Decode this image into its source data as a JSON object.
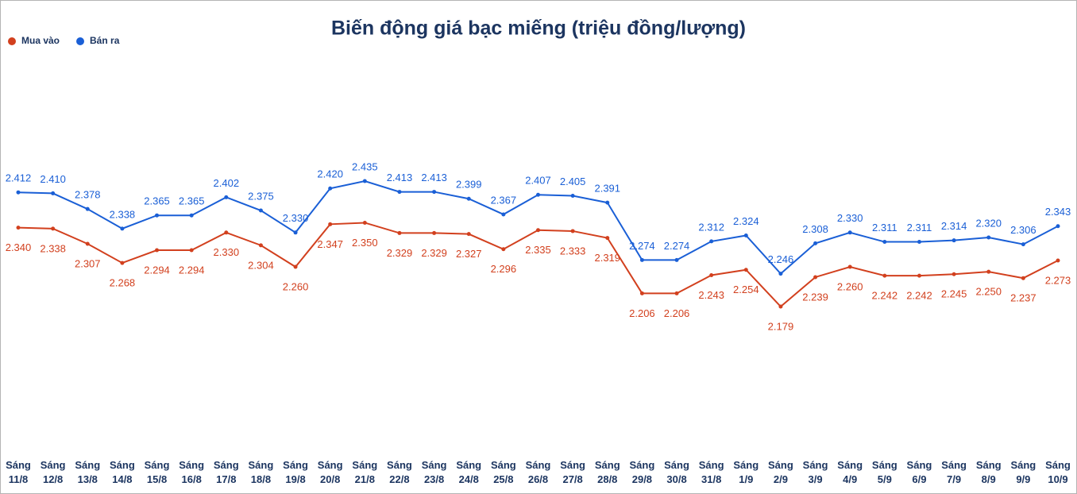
{
  "chart_data": {
    "type": "line",
    "title": "Biến động giá bạc miếng (triệu đồng/lượng)",
    "categories": [
      "Sáng 11/8",
      "Sáng 12/8",
      "Sáng 13/8",
      "Sáng 14/8",
      "Sáng 15/8",
      "Sáng 16/8",
      "Sáng 17/8",
      "Sáng 18/8",
      "Sáng 19/8",
      "Sáng 20/8",
      "Sáng 21/8",
      "Sáng 22/8",
      "Sáng 23/8",
      "Sáng 24/8",
      "Sáng 25/8",
      "Sáng 26/8",
      "Sáng 27/8",
      "Sáng 28/8",
      "Sáng 29/8",
      "Sáng 30/8",
      "Sáng 31/8",
      "Sáng 1/9",
      "Sáng 2/9",
      "Sáng 3/9",
      "Sáng 4/9",
      "Sáng 5/9",
      "Sáng 6/9",
      "Sáng 7/9",
      "Sáng 8/9",
      "Sáng 9/9",
      "Sáng 10/9"
    ],
    "legend": "top-left",
    "series": [
      {
        "name": "Mua vào",
        "color": "#d2401e",
        "values": [
          2.34,
          2.338,
          2.307,
          2.268,
          2.294,
          2.294,
          2.33,
          2.304,
          2.26,
          2.347,
          2.35,
          2.329,
          2.329,
          2.327,
          2.296,
          2.335,
          2.333,
          2.319,
          2.206,
          2.206,
          2.243,
          2.254,
          2.179,
          2.239,
          2.26,
          2.242,
          2.242,
          2.245,
          2.25,
          2.237,
          2.273
        ],
        "value_labels": [
          "2.340",
          "2.338",
          "2.307",
          "2.268",
          "2.294",
          "2.294",
          "2.330",
          "2.304",
          "2.260",
          "2.347",
          "2.350",
          "2.329",
          "2.329",
          "2.327",
          "2.296",
          "2.335",
          "2.333",
          "2.319",
          "2.206",
          "2.206",
          "2.243",
          "2.254",
          "2.179",
          "2.239",
          "2.260",
          "2.242",
          "2.242",
          "2.245",
          "2.250",
          "2.237",
          "2.273"
        ]
      },
      {
        "name": "Bán ra",
        "color": "#1a5fd6",
        "values": [
          2.412,
          2.41,
          2.378,
          2.338,
          2.365,
          2.365,
          2.402,
          2.375,
          2.33,
          2.42,
          2.435,
          2.413,
          2.413,
          2.399,
          2.367,
          2.407,
          2.405,
          2.391,
          2.274,
          2.274,
          2.312,
          2.324,
          2.246,
          2.308,
          2.33,
          2.311,
          2.311,
          2.314,
          2.32,
          2.306,
          2.343
        ],
        "value_labels": [
          "2.412",
          "2.410",
          "2.378",
          "2.338",
          "2.365",
          "2.365",
          "2.402",
          "2.375",
          "2.330",
          "2.420",
          "2.435",
          "2.413",
          "2.413",
          "2.399",
          "2.367",
          "2.407",
          "2.405",
          "2.391",
          "2.274",
          "2.274",
          "2.312",
          "2.324",
          "2.246",
          "2.308",
          "2.330",
          "2.311",
          "2.311",
          "2.314",
          "2.320",
          "2.306",
          "2.343"
        ]
      }
    ]
  }
}
